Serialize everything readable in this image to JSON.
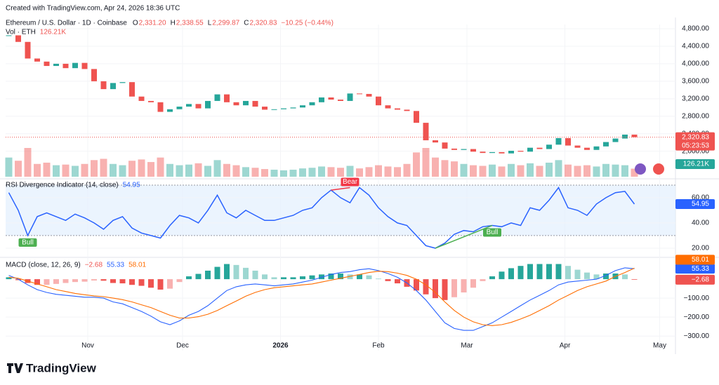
{
  "header": {
    "created": "Created with TradingView.com, Apr 24, 2026 18:36 UTC",
    "footer": "TradingView"
  },
  "x_axis": {
    "xlim": [
      5,
      217
    ],
    "xticks": [
      {
        "value": 31,
        "label": "Nov"
      },
      {
        "value": 61,
        "label": "Dec"
      },
      {
        "value": 92,
        "label": "2026"
      },
      {
        "value": 123,
        "label": "Feb"
      },
      {
        "value": 151,
        "label": "Mar"
      },
      {
        "value": 182,
        "label": "Apr"
      },
      {
        "value": 212,
        "label": "May"
      }
    ]
  },
  "chart_data": [
    {
      "type": "candlestick",
      "title": "Ethereum / U.S. Dollar · 1D · Coinbase",
      "ohlc": [
        {
          "label": "O",
          "value": "2,331.20"
        },
        {
          "label": "H",
          "value": "2,338.55"
        },
        {
          "label": "L",
          "value": "2,299.87"
        },
        {
          "label": "C",
          "value": "2,320.83"
        }
      ],
      "change": "−10.25 (−0.44%)",
      "last_label": "2,320.83",
      "countdown": "05:23:53",
      "ylim": [
        1417,
        4897
      ],
      "yticks": [
        {
          "value": 2000,
          "label": "2,000.00"
        },
        {
          "value": 2400,
          "label": "2,400.00"
        },
        {
          "value": 2800,
          "label": "2,800.00"
        },
        {
          "value": 3200,
          "label": "3,200.00"
        },
        {
          "value": 3600,
          "label": "3,600.00"
        },
        {
          "value": 4000,
          "label": "4,000.00"
        },
        {
          "value": 4400,
          "label": "4,400.00"
        },
        {
          "value": 4800,
          "label": "4,800.00"
        }
      ],
      "color_up": "#26a69a",
      "color_down": "#ef5350",
      "x": [
        6,
        9,
        12,
        15,
        18,
        21,
        24,
        27,
        30,
        33,
        36,
        39,
        42,
        45,
        48,
        51,
        54,
        57,
        60,
        63,
        66,
        69,
        72,
        75,
        78,
        81,
        84,
        87,
        90,
        93,
        96,
        99,
        102,
        105,
        108,
        111,
        114,
        117,
        120,
        123,
        126,
        129,
        132,
        135,
        138,
        141,
        144,
        147,
        150,
        153,
        156,
        159,
        162,
        165,
        168,
        171,
        174,
        177,
        180,
        183,
        186,
        189,
        192,
        195,
        198,
        201,
        204
      ],
      "values": [
        4650,
        4500,
        4120,
        4050,
        3950,
        4000,
        3900,
        4020,
        3880,
        3600,
        3420,
        3560,
        3580,
        3250,
        3150,
        3120,
        2900,
        2960,
        3020,
        3080,
        2980,
        3150,
        3300,
        3120,
        3050,
        3150,
        3020,
        2950,
        2960,
        2980,
        3000,
        3050,
        3120,
        3230,
        3180,
        3150,
        3320,
        3310,
        3250,
        3050,
        2980,
        2950,
        2920,
        2650,
        2250,
        2200,
        2060,
        2030,
        2050,
        1990,
        1960,
        1980,
        1950,
        2010,
        1990,
        2080,
        2050,
        2150,
        2300,
        2130,
        2080,
        2030,
        2110,
        2210,
        2290,
        2380,
        2320.83
      ],
      "volume": {
        "name": "Vol · ETH",
        "last_label": "126.21K",
        "vlim": [
          0,
          1000
        ],
        "values": [
          300,
          250,
          450,
          200,
          220,
          180,
          190,
          170,
          200,
          260,
          280,
          200,
          180,
          250,
          270,
          230,
          300,
          200,
          180,
          190,
          210,
          170,
          260,
          200,
          180,
          150,
          140,
          120,
          110,
          100,
          110,
          130,
          140,
          160,
          150,
          140,
          170,
          130,
          150,
          180,
          160,
          150,
          200,
          380,
          450,
          300,
          260,
          240,
          200,
          180,
          170,
          190,
          160,
          200,
          180,
          210,
          170,
          220,
          260,
          190,
          170,
          180,
          160,
          200,
          190,
          180,
          126.21
        ]
      }
    },
    {
      "type": "line",
      "title": "RSI Divergence Indicator (14, close)",
      "last_label": "54.95",
      "color": "#2962ff",
      "ylim": [
        14.4,
        73.3
      ],
      "band": [
        30,
        70
      ],
      "yticks": [
        {
          "value": 20,
          "label": "20.00"
        },
        {
          "value": 40,
          "label": "40.00"
        },
        {
          "value": 60,
          "label": "60.00"
        }
      ],
      "values": [
        64,
        50,
        30,
        45,
        48,
        45,
        42,
        47,
        44,
        40,
        35,
        42,
        45,
        36,
        32,
        30,
        28,
        38,
        46,
        44,
        40,
        50,
        62,
        48,
        44,
        50,
        46,
        42,
        42,
        44,
        46,
        50,
        52,
        60,
        66,
        60,
        56,
        68,
        62,
        52,
        45,
        40,
        38,
        30,
        22,
        20,
        24,
        31,
        34,
        33,
        37,
        38,
        37,
        40,
        38,
        52,
        50,
        58,
        68,
        52,
        50,
        46,
        55,
        60,
        64,
        65,
        54.95
      ],
      "annotations": [
        {
          "text": "Bull",
          "x": [
            12
          ],
          "y": [
            30
          ],
          "color": "#4caf50"
        },
        {
          "text": "Bear",
          "x": [
            108,
            114
          ],
          "y": [
            66,
            68
          ],
          "color": "#f23645"
        },
        {
          "text": "Bull",
          "x": [
            141,
            159
          ],
          "y": [
            20,
            38
          ],
          "color": "#4caf50"
        }
      ]
    },
    {
      "type": "macd",
      "title": "MACD (close, 12, 26, 9)",
      "ylim": [
        -377,
        104
      ],
      "yticks": [
        {
          "value": -100,
          "label": "−100.00"
        },
        {
          "value": -200,
          "label": "−200.00"
        },
        {
          "value": -300,
          "label": "−300.00"
        }
      ],
      "series": [
        {
          "color": "#26a69a",
          "color_down": "#ef5350",
          "last_label": "−2.68",
          "values": [
            10,
            -5,
            -20,
            -30,
            -30,
            -25,
            -20,
            -15,
            -13,
            -7,
            -8,
            -20,
            -22,
            -30,
            -35,
            -45,
            -55,
            -50,
            -15,
            15,
            28,
            45,
            65,
            80,
            75,
            60,
            45,
            25,
            10,
            10,
            10,
            15,
            20,
            25,
            30,
            30,
            25,
            25,
            20,
            3,
            -10,
            -22,
            -40,
            -60,
            -80,
            -100,
            -110,
            -95,
            -70,
            -45,
            -10,
            15,
            40,
            58,
            70,
            80,
            80,
            80,
            80,
            70,
            50,
            35,
            25,
            30,
            30,
            25,
            -2.68
          ]
        },
        {
          "color": "#2962ff",
          "last_label": "55.33",
          "values": [
            20,
            0,
            -30,
            -55,
            -70,
            -80,
            -85,
            -90,
            -95,
            -95,
            -100,
            -120,
            -130,
            -150,
            -170,
            -195,
            -225,
            -240,
            -220,
            -190,
            -170,
            -140,
            -100,
            -60,
            -40,
            -30,
            -25,
            -30,
            -35,
            -30,
            -25,
            -15,
            -5,
            10,
            25,
            35,
            40,
            50,
            55,
            45,
            30,
            10,
            -20,
            -60,
            -110,
            -170,
            -230,
            -260,
            -270,
            -270,
            -250,
            -230,
            -200,
            -170,
            -140,
            -110,
            -85,
            -60,
            -30,
            -15,
            -10,
            -5,
            0,
            20,
            45,
            60,
            55.33
          ]
        },
        {
          "color": "#ff6d00",
          "last_label": "58.01",
          "values": [
            10,
            5,
            -10,
            -25,
            -40,
            -55,
            -65,
            -75,
            -82,
            -88,
            -92,
            -100,
            -108,
            -120,
            -135,
            -150,
            -170,
            -190,
            -205,
            -205,
            -198,
            -185,
            -165,
            -140,
            -115,
            -90,
            -70,
            -55,
            -45,
            -40,
            -35,
            -30,
            -25,
            -15,
            -5,
            5,
            15,
            25,
            35,
            42,
            40,
            32,
            20,
            0,
            -30,
            -70,
            -120,
            -165,
            -200,
            -225,
            -240,
            -245,
            -240,
            -228,
            -210,
            -190,
            -165,
            -140,
            -110,
            -85,
            -60,
            -40,
            -25,
            -10,
            15,
            35,
            58.01
          ]
        }
      ]
    }
  ]
}
